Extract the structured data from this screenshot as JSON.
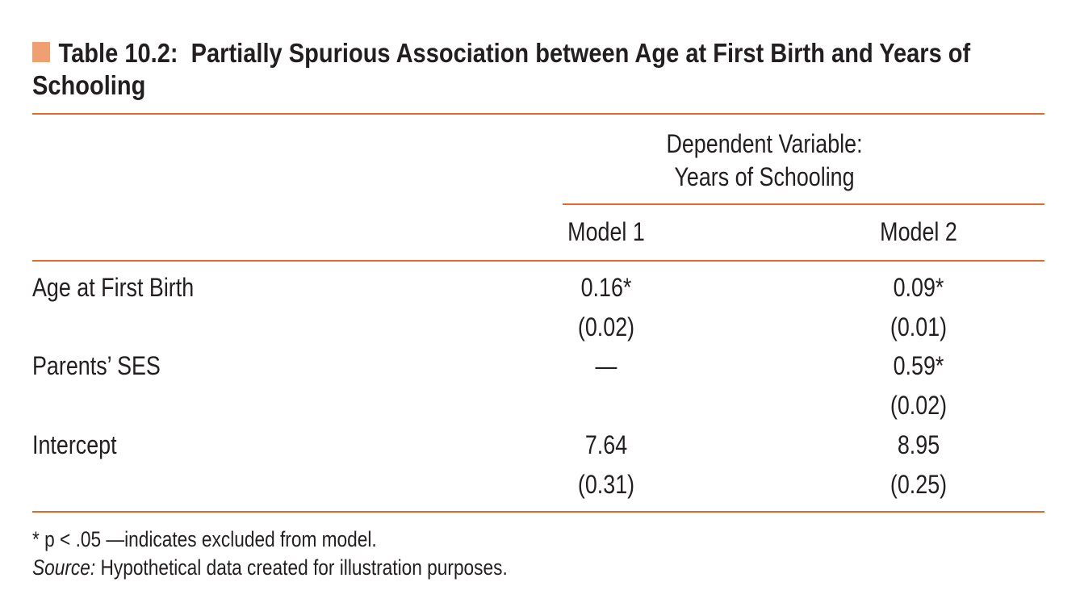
{
  "title": {
    "label": "Table 10.2:",
    "text": "Partially Spurious Association between Age at First Birth and Years of Schooling"
  },
  "header": {
    "dependent_variable_line1": "Dependent Variable:",
    "dependent_variable_line2": "Years of Schooling",
    "models": [
      "Model 1",
      "Model 2"
    ]
  },
  "rows": [
    {
      "label": "Age at First Birth",
      "model1": {
        "coef": "0.16*",
        "se": "(0.02)"
      },
      "model2": {
        "coef": "0.09*",
        "se": "(0.01)"
      }
    },
    {
      "label": "Parents’ SES",
      "model1": {
        "coef": "—",
        "se": ""
      },
      "model2": {
        "coef": "0.59*",
        "se": "(0.02)"
      }
    },
    {
      "label": "Intercept",
      "model1": {
        "coef": "7.64",
        "se": "(0.31)"
      },
      "model2": {
        "coef": "8.95",
        "se": "(0.25)"
      }
    }
  ],
  "footnotes": {
    "significance": "* p < .05 —indicates excluded from model.",
    "source_label": "Source:",
    "source_text": "Hypothetical data created for illustration purposes."
  },
  "colors": {
    "accent_rule": "#e36a2c",
    "title_square": "#f0a070",
    "text": "#231f20"
  }
}
